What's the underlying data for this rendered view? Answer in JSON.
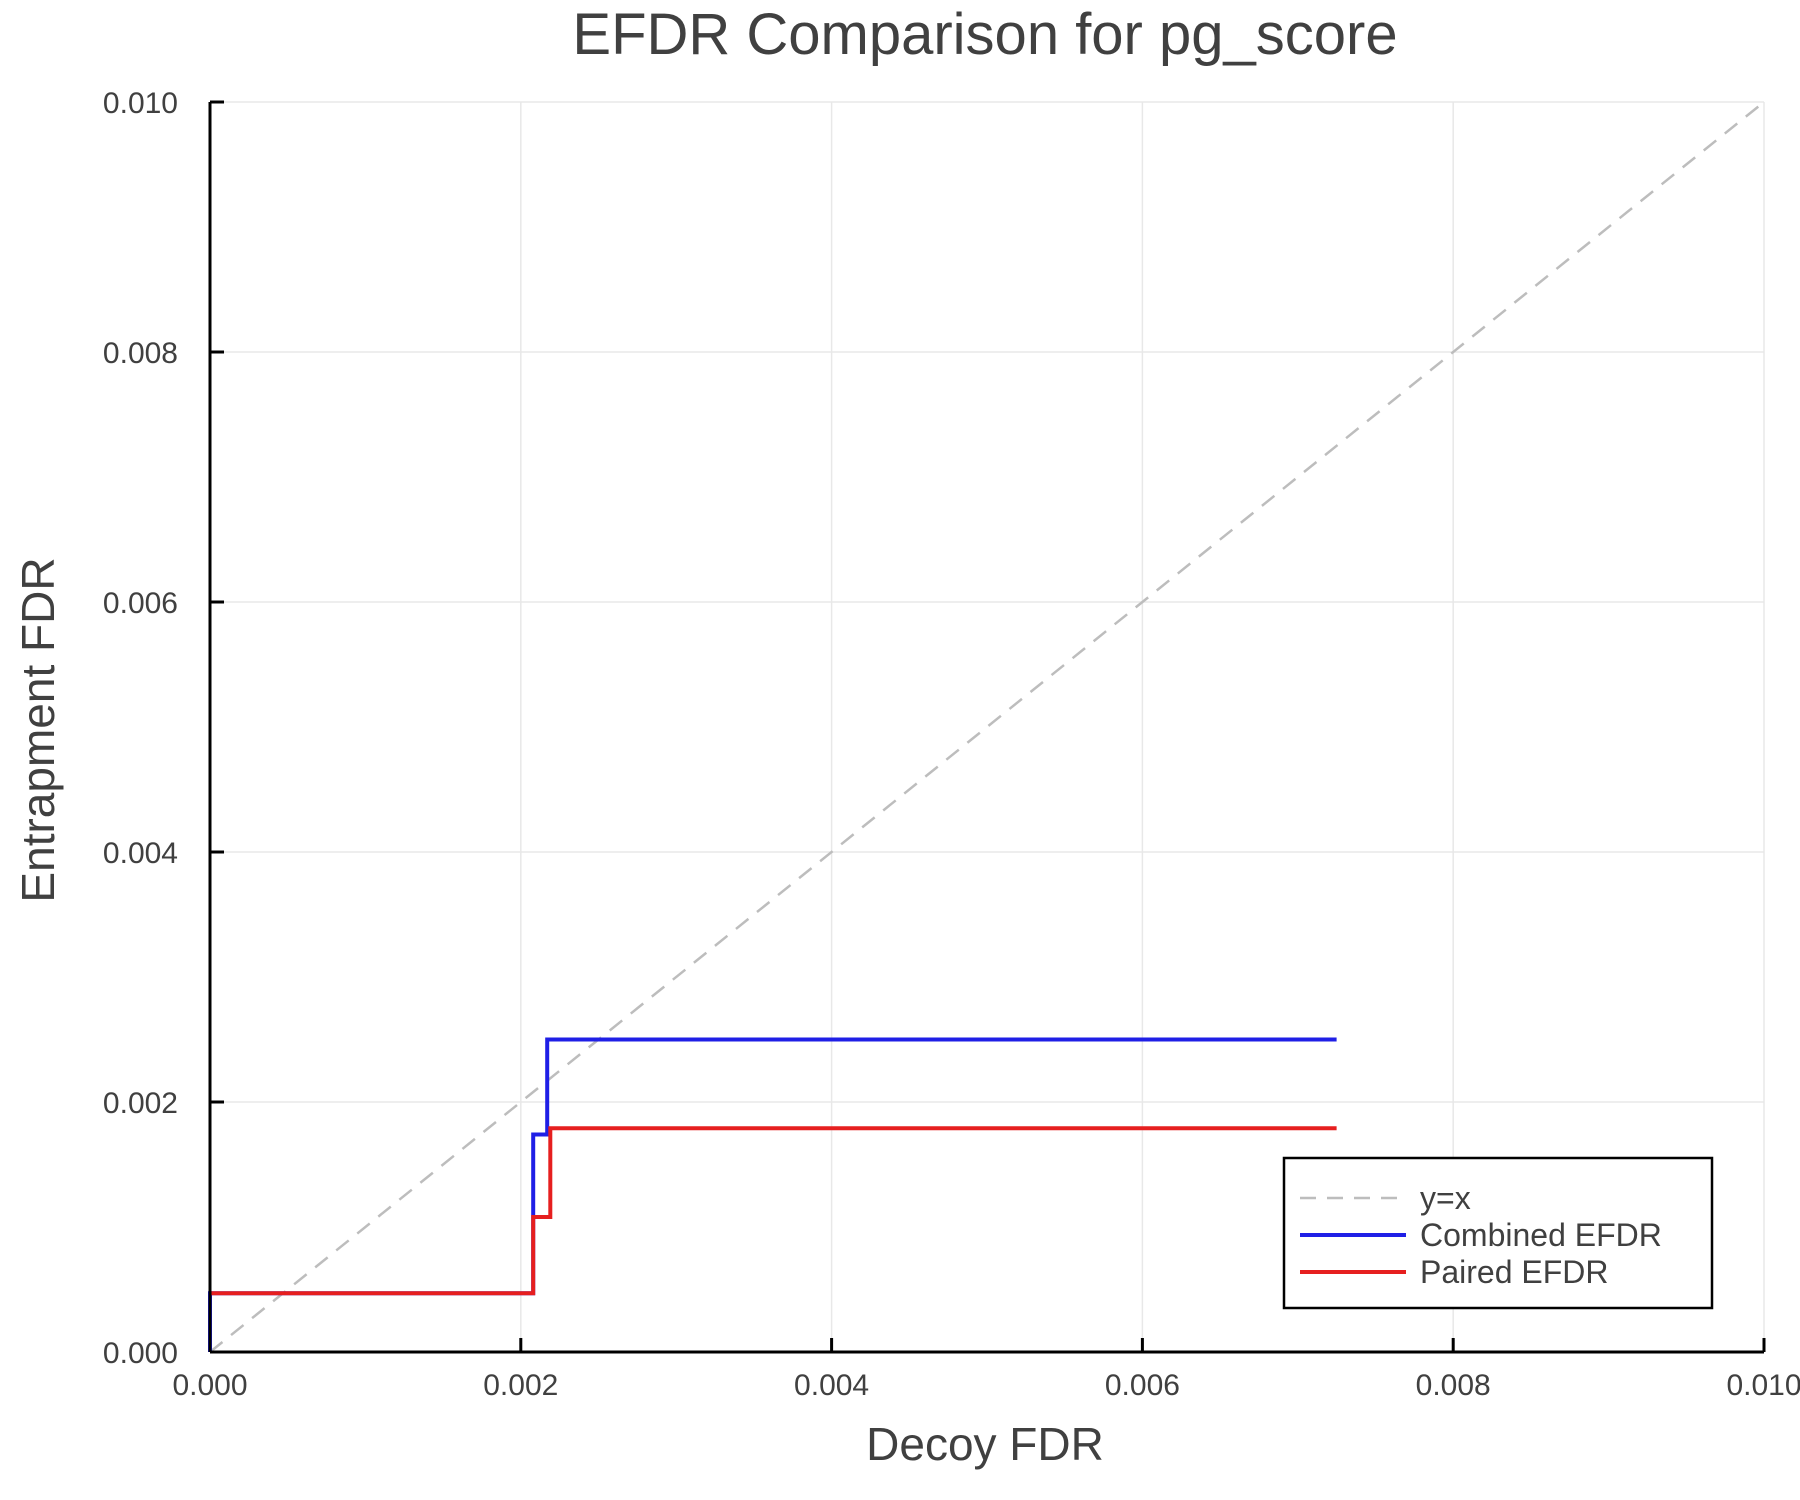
{
  "chart_data": {
    "type": "line",
    "title": "EFDR Comparison for pg_score",
    "xlabel": "Decoy FDR",
    "ylabel": "Entrapment FDR",
    "xlim": [
      0.0,
      0.01
    ],
    "ylim": [
      0.0,
      0.01
    ],
    "xticks": [
      0.0,
      0.002,
      0.004,
      0.006,
      0.008,
      0.01
    ],
    "xtick_labels": [
      "0.000",
      "0.002",
      "0.004",
      "0.006",
      "0.008",
      "0.010"
    ],
    "yticks": [
      0.0,
      0.002,
      0.004,
      0.006,
      0.008,
      0.01
    ],
    "ytick_labels": [
      "0.000",
      "0.002",
      "0.004",
      "0.006",
      "0.008",
      "0.010"
    ],
    "grid": true,
    "legend_position": "bottom-right",
    "series": [
      {
        "name": "y=x",
        "style": "dashed",
        "color": "#bdbdbd",
        "x": [
          0.0,
          0.01
        ],
        "y": [
          0.0,
          0.01
        ]
      },
      {
        "name": "Combined EFDR",
        "style": "solid",
        "color": "#1f1fe6",
        "x": [
          0.0,
          0.0,
          0.00208,
          0.00208,
          0.00217,
          0.00217,
          0.00725
        ],
        "y": [
          0.0,
          0.00047,
          0.00047,
          0.00174,
          0.00174,
          0.0025,
          0.0025
        ]
      },
      {
        "name": "Paired EFDR",
        "style": "solid",
        "color": "#e61f1f",
        "x": [
          0.0,
          0.00208,
          0.00208,
          0.00219,
          0.00219,
          0.00725
        ],
        "y": [
          0.00047,
          0.00047,
          0.00108,
          0.00108,
          0.00179,
          0.00179
        ]
      }
    ]
  }
}
